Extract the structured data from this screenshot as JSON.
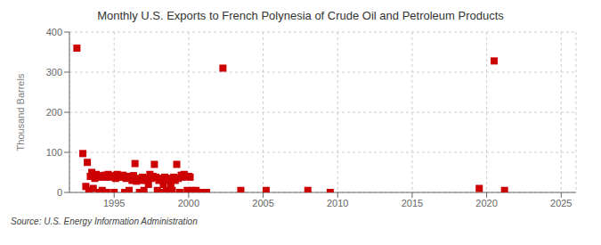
{
  "chart_data": {
    "type": "scatter",
    "title": "Monthly U.S. Exports to French Polynesia of Crude Oil and Petroleum Products",
    "ylabel": "Thousand Barrels",
    "annotations": [
      "Source: U.S. Energy Information Administration"
    ],
    "color": "#cc0000",
    "marker": "square",
    "grid": true,
    "xlim": [
      1992.0,
      2026.0
    ],
    "ylim": [
      0,
      400
    ],
    "xticks": [
      1995,
      2000,
      2005,
      2010,
      2015,
      2020,
      2025
    ],
    "yticks": [
      0,
      100,
      200,
      300,
      400
    ],
    "x": [
      1992.5,
      1992.9,
      1993.1,
      1993.2,
      1993.3,
      1993.4,
      1993.5,
      1993.6,
      1993.7,
      1993.8,
      1993.9,
      1994.0,
      1994.1,
      1994.2,
      1994.3,
      1994.4,
      1994.5,
      1994.6,
      1994.7,
      1994.8,
      1994.9,
      1995.0,
      1995.1,
      1995.2,
      1995.3,
      1995.4,
      1995.5,
      1995.6,
      1995.7,
      1995.8,
      1995.9,
      1996.0,
      1996.1,
      1996.2,
      1996.3,
      1996.4,
      1996.5,
      1996.6,
      1996.7,
      1996.8,
      1996.9,
      1997.0,
      1997.1,
      1997.2,
      1997.3,
      1997.4,
      1997.5,
      1997.6,
      1997.7,
      1997.8,
      1997.9,
      1998.0,
      1998.1,
      1998.2,
      1998.3,
      1998.4,
      1998.5,
      1998.6,
      1998.7,
      1998.8,
      1998.9,
      1999.0,
      1999.1,
      1999.2,
      1999.3,
      1999.4,
      1999.5,
      1999.6,
      1999.7,
      1999.8,
      1999.9,
      2000.0,
      2000.1,
      2000.2,
      2000.3,
      2000.5,
      2000.8,
      2001.2,
      2002.3,
      2003.5,
      2005.2,
      2008.0,
      2009.5,
      2019.5,
      2020.5,
      2021.2
    ],
    "values": [
      360,
      97,
      15,
      75,
      5,
      40,
      50,
      10,
      35,
      45,
      38,
      0,
      42,
      5,
      38,
      43,
      0,
      45,
      38,
      42,
      40,
      0,
      35,
      45,
      42,
      38,
      40,
      43,
      0,
      35,
      40,
      5,
      38,
      30,
      42,
      72,
      28,
      35,
      0,
      30,
      38,
      5,
      35,
      30,
      20,
      45,
      35,
      40,
      70,
      38,
      5,
      30,
      35,
      0,
      20,
      38,
      5,
      35,
      30,
      20,
      5,
      38,
      30,
      70,
      35,
      0,
      43,
      38,
      45,
      40,
      5,
      40,
      38,
      5,
      0,
      5,
      0,
      0,
      310,
      5,
      5,
      5,
      0,
      10,
      328,
      5
    ]
  }
}
